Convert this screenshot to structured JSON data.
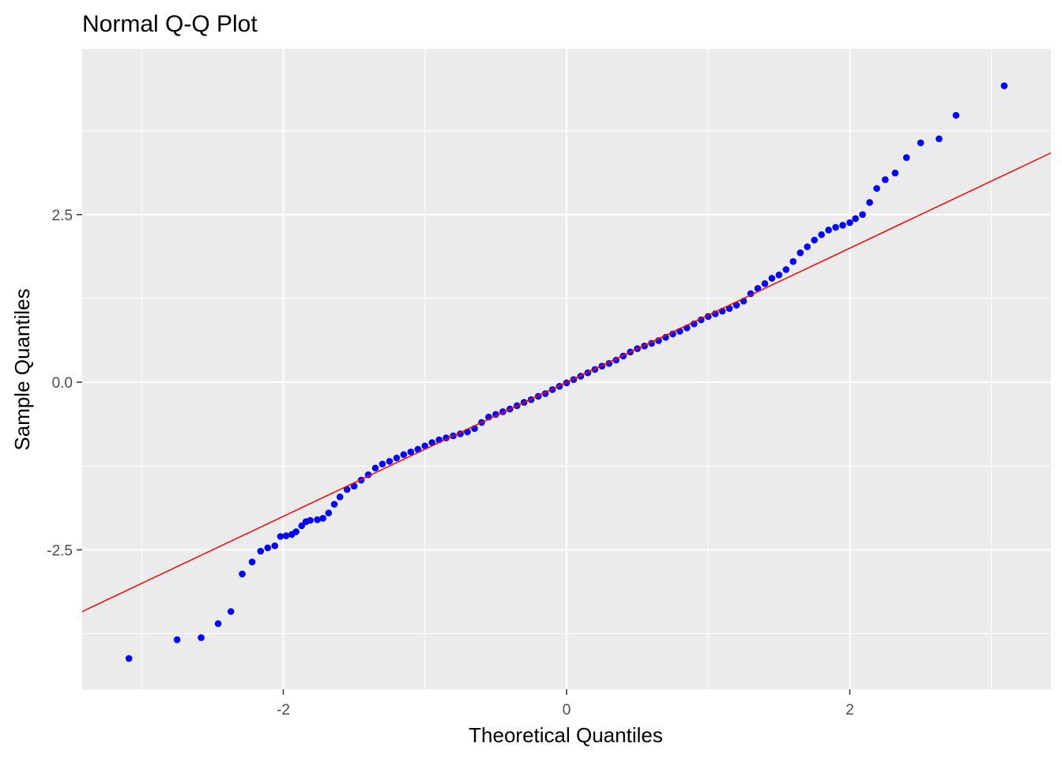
{
  "chart_data": {
    "type": "scatter",
    "title": "Normal Q-Q Plot",
    "xlabel": "Theoretical Quantiles",
    "ylabel": "Sample Quantiles",
    "xlim": [
      -3.42,
      3.42
    ],
    "ylim": [
      -4.58,
      4.97
    ],
    "x_ticks": [
      -2,
      0,
      2
    ],
    "x_tick_labels": [
      "-2",
      "0",
      "2"
    ],
    "y_ticks": [
      -2.5,
      0.0,
      2.5
    ],
    "y_tick_labels": [
      "-2.5",
      "0.0",
      "2.5"
    ],
    "grid": true,
    "legend": "none",
    "colors": {
      "panel": "#ebebeb",
      "grid": "#ffffff",
      "points": "#0000ff",
      "line": "#ff0000",
      "tick_mark": "#333333"
    },
    "reference_line": {
      "slope": 1.0,
      "intercept": 0.0
    },
    "series": [
      {
        "points": [
          [
            -3.09,
            -4.12
          ],
          [
            -2.75,
            -3.84
          ],
          [
            -2.58,
            -3.81
          ],
          [
            -2.46,
            -3.6
          ],
          [
            -2.37,
            -3.42
          ],
          [
            -2.29,
            -2.86
          ],
          [
            -2.22,
            -2.68
          ],
          [
            -2.16,
            -2.52
          ],
          [
            -2.11,
            -2.47
          ],
          [
            -2.06,
            -2.44
          ],
          [
            -2.02,
            -2.3
          ],
          [
            -1.98,
            -2.29
          ],
          [
            -1.94,
            -2.27
          ],
          [
            -1.91,
            -2.23
          ],
          [
            -1.87,
            -2.14
          ],
          [
            -1.84,
            -2.08
          ],
          [
            -1.81,
            -2.06
          ],
          [
            -1.76,
            -2.05
          ],
          [
            -1.72,
            -2.03
          ],
          [
            -1.68,
            -1.95
          ],
          [
            -1.64,
            -1.82
          ],
          [
            -1.6,
            -1.71
          ],
          [
            -1.55,
            -1.6
          ],
          [
            -1.5,
            -1.55
          ],
          [
            -1.45,
            -1.46
          ],
          [
            -1.4,
            -1.38
          ],
          [
            -1.35,
            -1.28
          ],
          [
            -1.3,
            -1.22
          ],
          [
            -1.25,
            -1.18
          ],
          [
            -1.2,
            -1.13
          ],
          [
            -1.15,
            -1.08
          ],
          [
            -1.1,
            -1.04
          ],
          [
            -1.05,
            -1.0
          ],
          [
            -1.0,
            -0.95
          ],
          [
            -0.95,
            -0.9
          ],
          [
            -0.9,
            -0.86
          ],
          [
            -0.85,
            -0.83
          ],
          [
            -0.8,
            -0.8
          ],
          [
            -0.75,
            -0.77
          ],
          [
            -0.7,
            -0.74
          ],
          [
            -0.65,
            -0.69
          ],
          [
            -0.6,
            -0.6
          ],
          [
            -0.55,
            -0.52
          ],
          [
            -0.5,
            -0.48
          ],
          [
            -0.45,
            -0.44
          ],
          [
            -0.4,
            -0.4
          ],
          [
            -0.35,
            -0.35
          ],
          [
            -0.3,
            -0.3
          ],
          [
            -0.25,
            -0.26
          ],
          [
            -0.2,
            -0.21
          ],
          [
            -0.15,
            -0.17
          ],
          [
            -0.1,
            -0.11
          ],
          [
            -0.05,
            -0.06
          ],
          [
            0.0,
            -0.01
          ],
          [
            0.05,
            0.04
          ],
          [
            0.1,
            0.09
          ],
          [
            0.15,
            0.14
          ],
          [
            0.2,
            0.19
          ],
          [
            0.25,
            0.24
          ],
          [
            0.3,
            0.28
          ],
          [
            0.35,
            0.33
          ],
          [
            0.4,
            0.39
          ],
          [
            0.45,
            0.45
          ],
          [
            0.5,
            0.5
          ],
          [
            0.55,
            0.54
          ],
          [
            0.6,
            0.58
          ],
          [
            0.65,
            0.62
          ],
          [
            0.7,
            0.67
          ],
          [
            0.75,
            0.72
          ],
          [
            0.8,
            0.76
          ],
          [
            0.85,
            0.81
          ],
          [
            0.9,
            0.87
          ],
          [
            0.95,
            0.93
          ],
          [
            1.0,
            0.98
          ],
          [
            1.05,
            1.02
          ],
          [
            1.1,
            1.06
          ],
          [
            1.15,
            1.1
          ],
          [
            1.2,
            1.15
          ],
          [
            1.25,
            1.21
          ],
          [
            1.3,
            1.32
          ],
          [
            1.35,
            1.4
          ],
          [
            1.4,
            1.47
          ],
          [
            1.45,
            1.55
          ],
          [
            1.5,
            1.6
          ],
          [
            1.55,
            1.68
          ],
          [
            1.6,
            1.8
          ],
          [
            1.65,
            1.93
          ],
          [
            1.7,
            2.02
          ],
          [
            1.75,
            2.12
          ],
          [
            1.8,
            2.2
          ],
          [
            1.85,
            2.27
          ],
          [
            1.9,
            2.31
          ],
          [
            1.95,
            2.34
          ],
          [
            2.0,
            2.38
          ],
          [
            2.04,
            2.44
          ],
          [
            2.09,
            2.5
          ],
          [
            2.14,
            2.68
          ],
          [
            2.19,
            2.89
          ],
          [
            2.25,
            3.02
          ],
          [
            2.32,
            3.12
          ],
          [
            2.4,
            3.35
          ],
          [
            2.5,
            3.57
          ],
          [
            2.63,
            3.63
          ],
          [
            2.75,
            3.98
          ],
          [
            3.09,
            4.42
          ]
        ]
      }
    ]
  }
}
